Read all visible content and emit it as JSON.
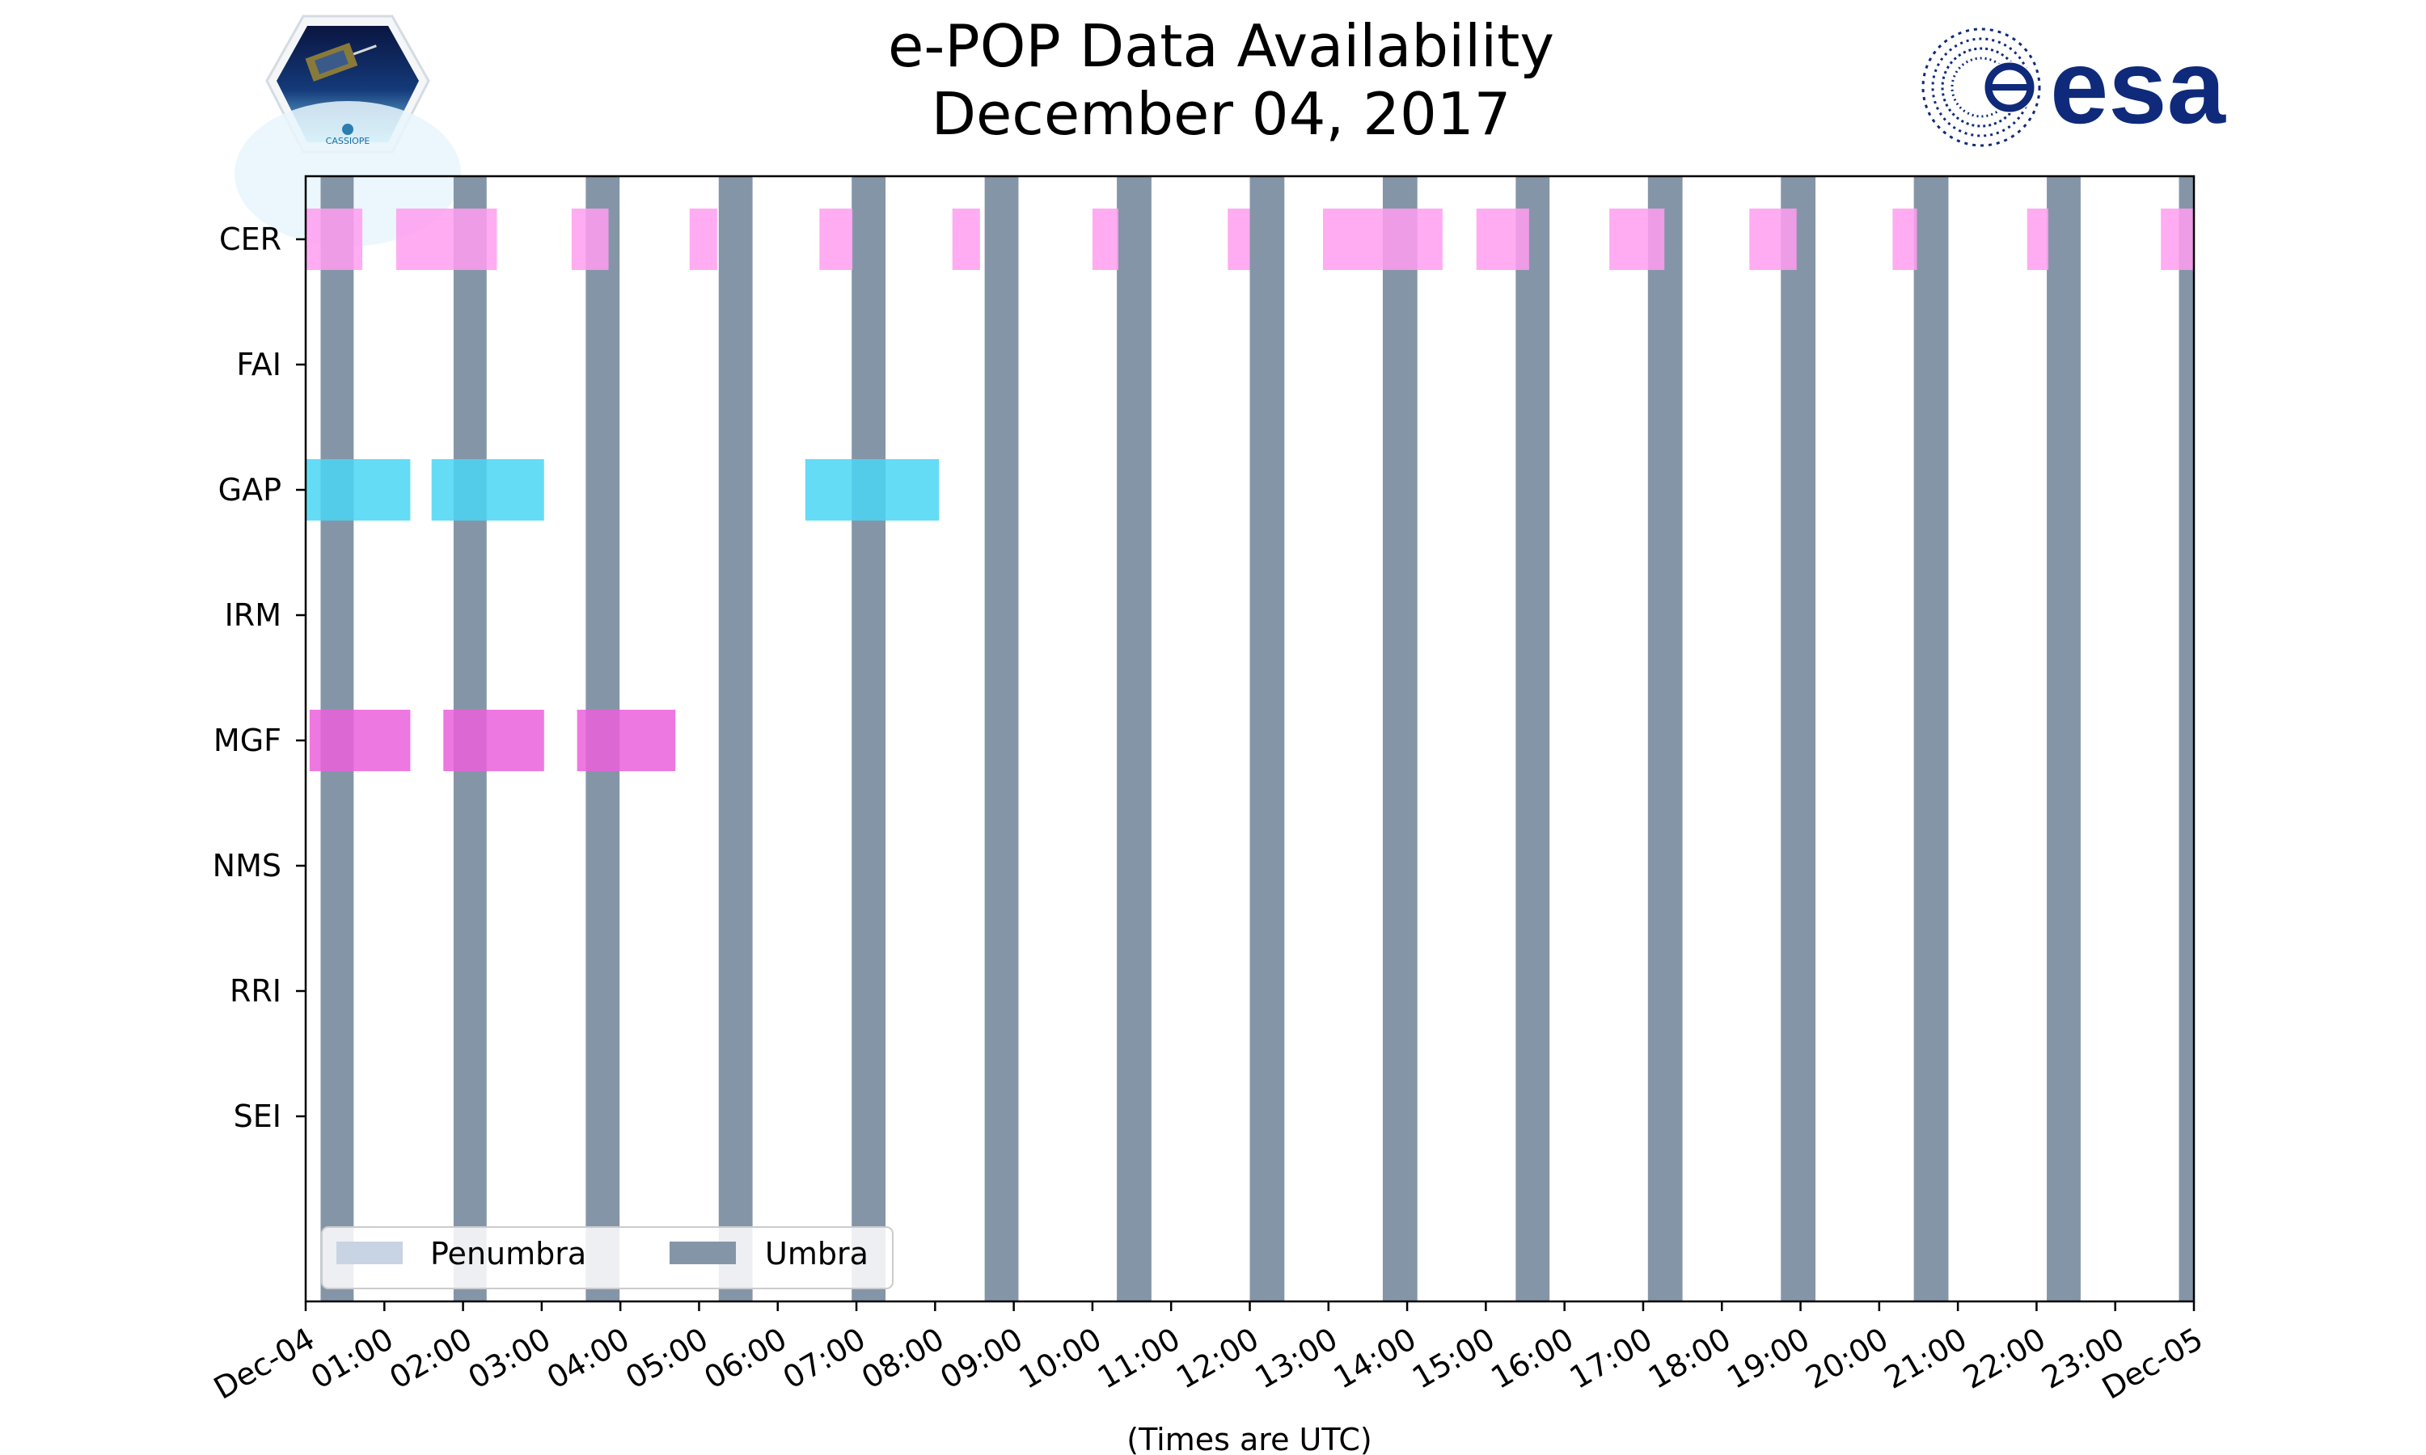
{
  "chart_data": {
    "type": "timeline",
    "title_line1": "e-POP Data Availability",
    "title_line2": "December 04, 2017",
    "xlabel": "(Times are UTC)",
    "xlim_hours": [
      0,
      24
    ],
    "x_tick_labels": [
      "Dec-04",
      "01:00",
      "02:00",
      "03:00",
      "04:00",
      "05:00",
      "06:00",
      "07:00",
      "08:00",
      "09:00",
      "10:00",
      "11:00",
      "12:00",
      "13:00",
      "14:00",
      "15:00",
      "16:00",
      "17:00",
      "18:00",
      "19:00",
      "20:00",
      "21:00",
      "22:00",
      "23:00",
      "Dec-05"
    ],
    "instruments": [
      "CER",
      "FAI",
      "GAP",
      "IRM",
      "MGF",
      "NMS",
      "RRI",
      "SEI"
    ],
    "umbra_intervals_hours": [
      [
        0.19,
        0.61
      ],
      [
        1.88,
        2.3
      ],
      [
        3.56,
        3.99
      ],
      [
        5.25,
        5.68
      ],
      [
        6.94,
        7.37
      ],
      [
        8.63,
        9.06
      ],
      [
        10.31,
        10.75
      ],
      [
        12.0,
        12.44
      ],
      [
        13.69,
        14.13
      ],
      [
        15.38,
        15.81
      ],
      [
        17.06,
        17.5
      ],
      [
        18.75,
        19.19
      ],
      [
        20.44,
        20.88
      ],
      [
        22.13,
        22.56
      ],
      [
        23.81,
        24.0
      ]
    ],
    "series": [
      {
        "name": "CER",
        "color": "#ff9df0",
        "intervals_hours": [
          [
            0.0,
            0.72
          ],
          [
            1.15,
            2.43
          ],
          [
            3.38,
            3.85
          ],
          [
            4.88,
            5.23
          ],
          [
            6.53,
            6.95
          ],
          [
            8.22,
            8.57
          ],
          [
            10.0,
            10.33
          ],
          [
            11.72,
            12.0
          ],
          [
            12.93,
            14.45
          ],
          [
            14.88,
            15.55
          ],
          [
            16.57,
            17.27
          ],
          [
            18.35,
            18.95
          ],
          [
            20.17,
            20.48
          ],
          [
            21.88,
            22.15
          ],
          [
            23.58,
            24.0
          ]
        ]
      },
      {
        "name": "GAP",
        "color": "#4ad6f5",
        "intervals_hours": [
          [
            0.0,
            1.33
          ],
          [
            1.6,
            3.03
          ],
          [
            6.35,
            8.05
          ]
        ]
      },
      {
        "name": "MGF",
        "color": "#eb60dc",
        "intervals_hours": [
          [
            0.05,
            1.33
          ],
          [
            1.75,
            3.03
          ],
          [
            3.45,
            4.7
          ]
        ]
      }
    ],
    "legend": {
      "placement": "lower-left",
      "entries": [
        {
          "label": "Penumbra",
          "color": "#c8d4e4"
        },
        {
          "label": "Umbra",
          "color": "#8595a8"
        }
      ]
    },
    "colors": {
      "umbra": "#8595a8",
      "penumbra": "#c8d4e4"
    }
  },
  "logos": {
    "left_logo_text": "CASSIOPE",
    "right_logo_text": "esa",
    "esa_color": "#0f2a7a"
  }
}
